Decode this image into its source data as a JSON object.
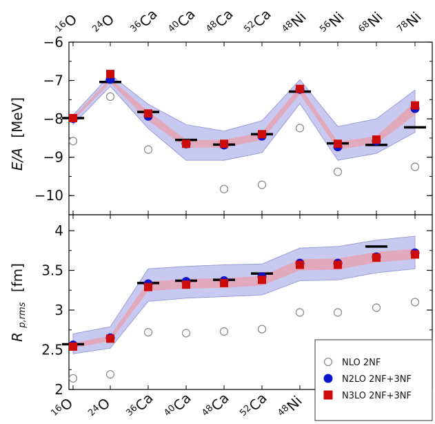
{
  "chart_data": [
    {
      "type": "scatter",
      "title": "",
      "ylabel_main": "E/A",
      "ylabel_unit": "[MeV]",
      "ylim": [
        -10.5,
        -6
      ],
      "yticks": [
        -6,
        -7,
        -8,
        -9,
        -10
      ],
      "ytick_labels": [
        "−6",
        "−7",
        "−8",
        "−9",
        "−10"
      ],
      "categories": [
        "16O",
        "24O",
        "36Ca",
        "40Ca",
        "48Ca",
        "52Ca",
        "48Ni",
        "56Ni",
        "68Ni",
        "78Ni"
      ],
      "experiment": [
        -7.98,
        -7.04,
        -7.82,
        -8.55,
        -8.67,
        -8.4,
        -7.29,
        -8.64,
        -8.68,
        -8.22
      ],
      "series": [
        {
          "name": "NLO  2NF",
          "values": [
            -8.58,
            -7.42,
            -8.8,
            -8.66,
            -9.83,
            -9.72,
            -8.24,
            -9.38,
            -8.56,
            -9.25
          ]
        },
        {
          "name": "N2LO 2NF+3NF",
          "values": [
            -7.99,
            -6.97,
            -7.93,
            -8.65,
            -8.68,
            -8.45,
            -7.23,
            -8.73,
            -8.58,
            -7.73
          ]
        },
        {
          "name": "N3LO 2NF+3NF",
          "values": [
            -7.98,
            -6.83,
            -7.86,
            -8.65,
            -8.65,
            -8.4,
            -7.22,
            -8.65,
            -8.54,
            -7.65
          ]
        }
      ],
      "band_outer": {
        "lower": [
          -8.15,
          -7.15,
          -8.25,
          -9.08,
          -9.08,
          -8.88,
          -7.6,
          -9.08,
          -8.9,
          -8.35
        ],
        "upper": [
          -7.9,
          -6.85,
          -7.62,
          -8.15,
          -8.32,
          -8.05,
          -6.98,
          -8.2,
          -8.0,
          -7.25
        ]
      },
      "band_inner": {
        "lower": [
          -8.05,
          -7.05,
          -8.05,
          -8.75,
          -8.75,
          -8.55,
          -7.35,
          -8.8,
          -8.65,
          -7.9
        ],
        "upper": [
          -7.95,
          -6.95,
          -7.8,
          -8.55,
          -8.55,
          -8.35,
          -7.15,
          -8.6,
          -8.45,
          -7.55
        ]
      }
    },
    {
      "type": "scatter",
      "title": "",
      "ylabel_main": "R",
      "ylabel_sub": "p,rms",
      "ylabel_unit": "[fm]",
      "ylim": [
        2.0,
        4.2
      ],
      "yticks": [
        2,
        2.5,
        3,
        3.5,
        4
      ],
      "ytick_labels": [
        "2",
        "2.5",
        "3",
        "3.5",
        "4"
      ],
      "categories": [
        "16O",
        "24O",
        "36Ca",
        "40Ca",
        "48Ca",
        "52Ca",
        "48Ni",
        "56Ni",
        "68Ni",
        "78Ni"
      ],
      "experiment": [
        2.57,
        null,
        3.34,
        3.37,
        3.38,
        3.46,
        null,
        null,
        3.8,
        null
      ],
      "series": [
        {
          "name": "NLO  2NF",
          "values": [
            2.14,
            2.19,
            2.72,
            2.71,
            2.73,
            2.76,
            2.97,
            2.97,
            3.03,
            3.1
          ]
        },
        {
          "name": "N2LO 2NF+3NF",
          "values": [
            2.56,
            2.65,
            3.33,
            3.36,
            3.37,
            3.42,
            3.59,
            3.59,
            3.67,
            3.72
          ]
        },
        {
          "name": "N3LO 2NF+3NF",
          "values": [
            2.54,
            2.64,
            3.29,
            3.32,
            3.34,
            3.38,
            3.57,
            3.57,
            3.66,
            3.7
          ]
        }
      ],
      "band_outer": {
        "lower": [
          2.45,
          2.52,
          3.11,
          3.15,
          3.17,
          3.19,
          3.37,
          3.38,
          3.47,
          3.52
        ],
        "upper": [
          2.7,
          2.79,
          3.52,
          3.55,
          3.57,
          3.58,
          3.78,
          3.8,
          3.88,
          3.93
        ]
      },
      "band_inner": {
        "lower": [
          2.52,
          2.61,
          3.24,
          3.27,
          3.28,
          3.31,
          3.5,
          3.51,
          3.6,
          3.64
        ],
        "upper": [
          2.58,
          2.68,
          3.36,
          3.39,
          3.4,
          3.43,
          3.64,
          3.65,
          3.73,
          3.77
        ]
      }
    }
  ],
  "x_labels": [
    {
      "mass": "16",
      "el": "O"
    },
    {
      "mass": "24",
      "el": "O"
    },
    {
      "mass": "36",
      "el": "Ca"
    },
    {
      "mass": "40",
      "el": "Ca"
    },
    {
      "mass": "48",
      "el": "Ca"
    },
    {
      "mass": "52",
      "el": "Ca"
    },
    {
      "mass": "48",
      "el": "Ni"
    },
    {
      "mass": "56",
      "el": "Ni"
    },
    {
      "mass": "68",
      "el": "Ni"
    },
    {
      "mass": "78",
      "el": "Ni"
    }
  ],
  "legend": {
    "items": [
      "NLO  2NF",
      "N2LO 2NF+3NF",
      "N3LO 2NF+3NF"
    ]
  },
  "colors": {
    "nlo": "#8c8c8c",
    "n2lo": "#0a14c8",
    "n3lo": "#cc0b0b",
    "band_outer": "#c7c9f0",
    "band_outer_stroke": "#9a9cd6",
    "band_inner": "#e6a3b4",
    "experiment": "#000000"
  }
}
